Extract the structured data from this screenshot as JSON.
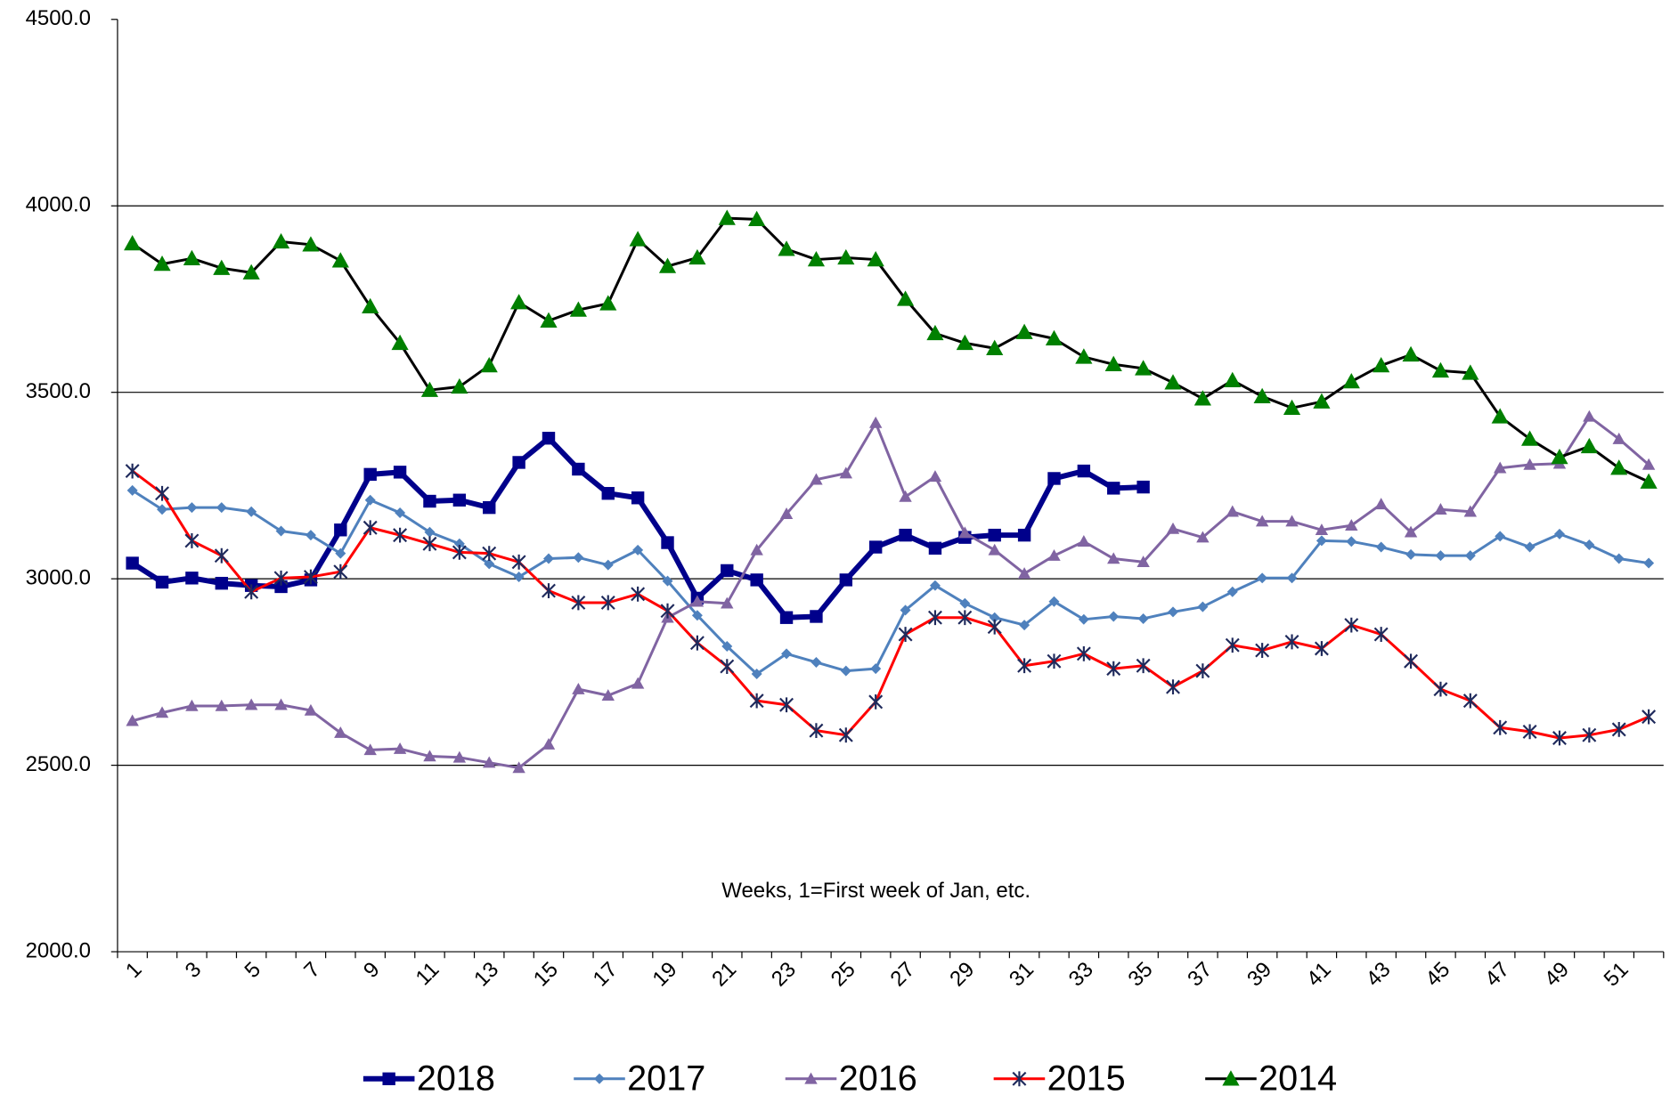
{
  "chart_data": {
    "type": "line",
    "annotation": "Weeks, 1=First week of Jan, etc.",
    "categories": [
      1,
      null,
      3,
      null,
      5,
      null,
      7,
      null,
      9,
      null,
      11,
      null,
      13,
      null,
      15,
      null,
      17,
      null,
      19,
      null,
      21,
      null,
      23,
      null,
      25,
      null,
      27,
      null,
      29,
      null,
      31,
      null,
      33,
      null,
      35,
      null,
      37,
      null,
      39,
      null,
      41,
      null,
      43,
      null,
      45,
      null,
      47,
      null,
      49,
      null,
      51,
      null
    ],
    "ylim": [
      2000,
      4500
    ],
    "yticks": [
      {
        "value": 2000,
        "label": "2000.0"
      },
      {
        "value": 2500,
        "label": "2500.0"
      },
      {
        "value": 3000,
        "label": "3000.0"
      },
      {
        "value": 3500,
        "label": "3500.0"
      },
      {
        "value": 4000,
        "label": "4000.0"
      },
      {
        "value": 4500,
        "label": "4500.0"
      }
    ],
    "grid": true,
    "legend": "bottom",
    "series": [
      {
        "name": "2018",
        "color": "#00008b",
        "marker": "square",
        "marker_color": "#00008b",
        "values": [
          3042,
          2991,
          3002,
          2988,
          2982,
          2979,
          2997,
          3131,
          3280,
          3286,
          3208,
          3211,
          3191,
          3312,
          3377,
          3294,
          3229,
          3217,
          3097,
          2948,
          3022,
          2997,
          2896,
          2899,
          2997,
          3085,
          3117,
          3082,
          3111,
          3117,
          3117,
          3269,
          3289,
          3243,
          3246,
          null,
          null,
          null,
          null,
          null,
          null,
          null,
          null,
          null,
          null,
          null,
          null,
          null,
          null,
          null,
          null,
          null
        ]
      },
      {
        "name": "2017",
        "color": "#4f81bd",
        "marker": "diamond",
        "marker_color": "#4f81bd",
        "values": [
          3237,
          3186,
          3191,
          3191,
          3180,
          3128,
          3117,
          3068,
          3211,
          3177,
          3125,
          3094,
          3040,
          3005,
          3054,
          3057,
          3037,
          3077,
          2994,
          2902,
          2819,
          2745,
          2799,
          2776,
          2753,
          2759,
          2916,
          2982,
          2934,
          2896,
          2876,
          2939,
          2891,
          2899,
          2893,
          2911,
          2925,
          2965,
          3002,
          3002,
          3102,
          3100,
          3085,
          3065,
          3062,
          3062,
          3114,
          3085,
          3120,
          3091,
          3054,
          3042
        ]
      },
      {
        "name": "2016",
        "color": "#8064a2",
        "marker": "triangle",
        "marker_color": "#8064a2",
        "values": [
          2619,
          2641,
          2659,
          2659,
          2662,
          2662,
          2647,
          2587,
          2541,
          2544,
          2524,
          2521,
          2507,
          2493,
          2556,
          2704,
          2687,
          2719,
          2896,
          2939,
          2934,
          3077,
          3174,
          3266,
          3283,
          3418,
          3220,
          3274,
          3123,
          3077,
          3014,
          3062,
          3100,
          3054,
          3045,
          3134,
          3111,
          3180,
          3154,
          3154,
          3131,
          3143,
          3200,
          3125,
          3186,
          3180,
          3297,
          3306,
          3309,
          3435,
          3375,
          3306
        ]
      },
      {
        "name": "2015",
        "color": "#ff0000",
        "marker": "asterisk",
        "marker_color": "#1f2a5c",
        "values": [
          3289,
          3229,
          3102,
          3062,
          2965,
          3002,
          3005,
          3019,
          3137,
          3117,
          3094,
          3071,
          3068,
          3045,
          2968,
          2936,
          2936,
          2959,
          2914,
          2828,
          2765,
          2673,
          2662,
          2593,
          2581,
          2670,
          2851,
          2896,
          2896,
          2871,
          2767,
          2779,
          2799,
          2759,
          2767,
          2710,
          2753,
          2822,
          2808,
          2831,
          2813,
          2876,
          2851,
          2779,
          2704,
          2673,
          2601,
          2590,
          2573,
          2581,
          2596,
          2630
        ]
      },
      {
        "name": "2014",
        "color": "#000000",
        "marker": "triangle",
        "marker_color": "#008000",
        "values": [
          3899,
          3844,
          3859,
          3833,
          3821,
          3904,
          3896,
          3853,
          3730,
          3632,
          3506,
          3515,
          3572,
          3741,
          3692,
          3721,
          3738,
          3910,
          3838,
          3861,
          3967,
          3964,
          3884,
          3856,
          3861,
          3856,
          3750,
          3658,
          3632,
          3618,
          3661,
          3644,
          3595,
          3575,
          3564,
          3526,
          3483,
          3532,
          3489,
          3458,
          3475,
          3529,
          3572,
          3601,
          3558,
          3552,
          3435,
          3375,
          3326,
          3355,
          3297,
          3260
        ]
      }
    ]
  }
}
